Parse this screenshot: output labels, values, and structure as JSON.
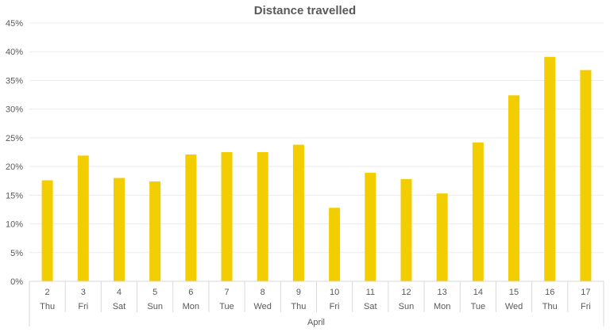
{
  "chart_data": {
    "type": "bar",
    "title": "Distance travelled",
    "xlabel": "",
    "ylabel": "",
    "group_label": "April",
    "categories": [
      "2",
      "3",
      "4",
      "5",
      "6",
      "7",
      "8",
      "9",
      "10",
      "11",
      "12",
      "13",
      "14",
      "15",
      "16",
      "17"
    ],
    "weekdays": [
      "Thu",
      "Fri",
      "Sat",
      "Sun",
      "Mon",
      "Tue",
      "Wed",
      "Thu",
      "Fri",
      "Sat",
      "Sun",
      "Mon",
      "Tue",
      "Wed",
      "Thu",
      "Fri"
    ],
    "values": [
      17.6,
      21.9,
      18.0,
      17.4,
      22.1,
      22.5,
      22.5,
      23.8,
      12.8,
      18.9,
      17.8,
      15.3,
      24.2,
      32.4,
      39.1,
      36.8
    ],
    "ylim": [
      0,
      45
    ],
    "y_ticks": [
      "0%",
      "5%",
      "10%",
      "15%",
      "20%",
      "25%",
      "30%",
      "35%",
      "40%",
      "45%"
    ],
    "grid": true,
    "legend": "none",
    "bar_color": "#f2cd00"
  }
}
